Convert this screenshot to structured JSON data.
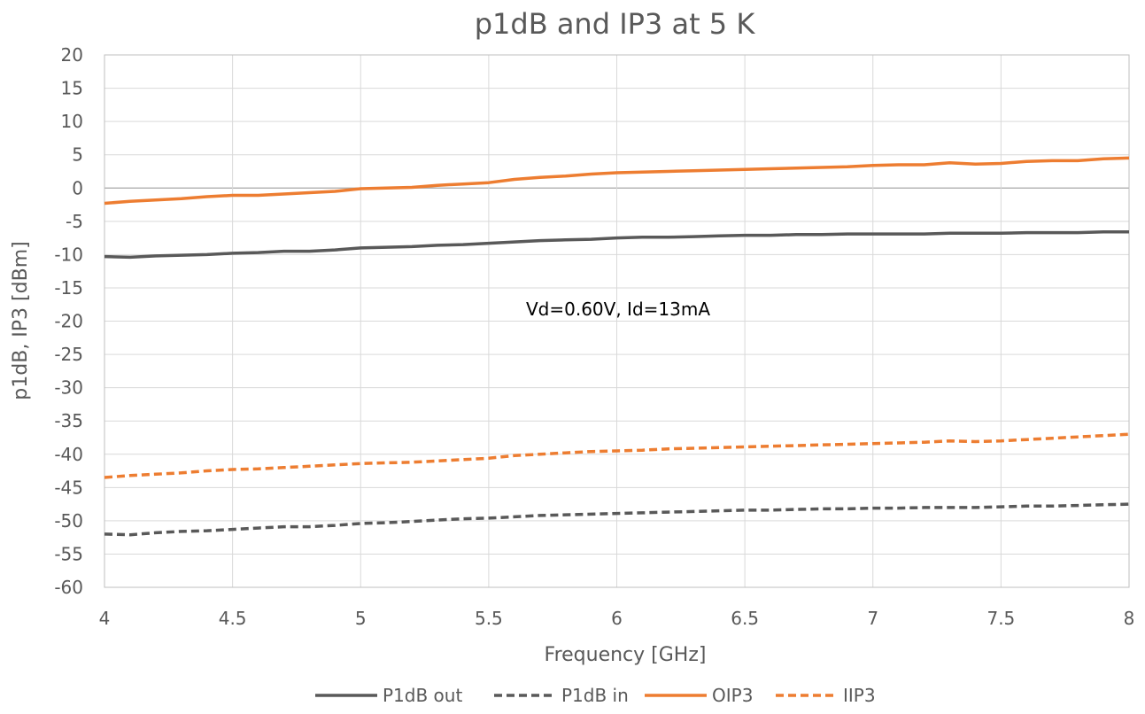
{
  "chart_data": {
    "type": "line",
    "title": "p1dB and IP3 at 5 K",
    "xlabel": "Frequency [GHz]",
    "ylabel": "p1dB, IP3 [dBm]",
    "xlim": [
      4,
      8
    ],
    "ylim": [
      -60,
      20
    ],
    "xticks": [
      "4",
      "4.5",
      "5",
      "5.5",
      "6",
      "6.5",
      "7",
      "7.5",
      "8"
    ],
    "yticks": [
      "20",
      "15",
      "10",
      "5",
      "0",
      "-5",
      "-10",
      "-15",
      "-20",
      "-25",
      "-30",
      "-35",
      "-40",
      "-45",
      "-50",
      "-55",
      "-60"
    ],
    "grid": true,
    "legend_position": "bottom",
    "annotation": "Vd=0.60V, Id=13mA",
    "x": [
      4.0,
      4.1,
      4.2,
      4.3,
      4.4,
      4.5,
      4.6,
      4.7,
      4.8,
      4.9,
      5.0,
      5.1,
      5.2,
      5.3,
      5.4,
      5.5,
      5.6,
      5.7,
      5.8,
      5.9,
      6.0,
      6.1,
      6.2,
      6.3,
      6.4,
      6.5,
      6.6,
      6.7,
      6.8,
      6.9,
      7.0,
      7.1,
      7.2,
      7.3,
      7.4,
      7.5,
      7.6,
      7.7,
      7.8,
      7.9,
      8.0
    ],
    "series": [
      {
        "name": "P1dB out",
        "color": "#595959",
        "dash": "solid",
        "values": [
          -10.3,
          -10.4,
          -10.2,
          -10.1,
          -10.0,
          -9.8,
          -9.7,
          -9.5,
          -9.5,
          -9.3,
          -9.0,
          -8.9,
          -8.8,
          -8.6,
          -8.5,
          -8.3,
          -8.1,
          -7.9,
          -7.8,
          -7.7,
          -7.5,
          -7.4,
          -7.4,
          -7.3,
          -7.2,
          -7.1,
          -7.1,
          -7.0,
          -7.0,
          -6.9,
          -6.9,
          -6.9,
          -6.9,
          -6.8,
          -6.8,
          -6.8,
          -6.7,
          -6.7,
          -6.7,
          -6.6,
          -6.6
        ]
      },
      {
        "name": "P1dB in",
        "color": "#595959",
        "dash": "dashed",
        "values": [
          -52.0,
          -52.1,
          -51.8,
          -51.6,
          -51.5,
          -51.3,
          -51.1,
          -50.9,
          -50.9,
          -50.7,
          -50.4,
          -50.3,
          -50.1,
          -49.9,
          -49.7,
          -49.6,
          -49.4,
          -49.2,
          -49.1,
          -49.0,
          -48.9,
          -48.8,
          -48.7,
          -48.6,
          -48.5,
          -48.4,
          -48.4,
          -48.3,
          -48.2,
          -48.2,
          -48.1,
          -48.1,
          -48.0,
          -48.0,
          -48.0,
          -47.9,
          -47.8,
          -47.8,
          -47.7,
          -47.6,
          -47.5
        ]
      },
      {
        "name": "OIP3",
        "color": "#ed7d31",
        "dash": "solid",
        "values": [
          -2.3,
          -2.0,
          -1.8,
          -1.6,
          -1.3,
          -1.1,
          -1.1,
          -0.9,
          -0.7,
          -0.5,
          -0.1,
          0.0,
          0.1,
          0.4,
          0.6,
          0.8,
          1.3,
          1.6,
          1.8,
          2.1,
          2.3,
          2.4,
          2.5,
          2.6,
          2.7,
          2.8,
          2.9,
          3.0,
          3.1,
          3.2,
          3.4,
          3.5,
          3.5,
          3.8,
          3.6,
          3.7,
          4.0,
          4.1,
          4.1,
          4.4,
          4.5
        ]
      },
      {
        "name": "IIP3",
        "color": "#ed7d31",
        "dash": "dashed",
        "values": [
          -43.5,
          -43.2,
          -43.0,
          -42.8,
          -42.5,
          -42.3,
          -42.2,
          -42.0,
          -41.8,
          -41.6,
          -41.4,
          -41.3,
          -41.2,
          -41.0,
          -40.8,
          -40.6,
          -40.2,
          -40.0,
          -39.8,
          -39.6,
          -39.5,
          -39.4,
          -39.2,
          -39.1,
          -39.0,
          -38.9,
          -38.8,
          -38.7,
          -38.6,
          -38.5,
          -38.4,
          -38.3,
          -38.2,
          -38.0,
          -38.1,
          -38.0,
          -37.8,
          -37.6,
          -37.4,
          -37.2,
          -37.0
        ]
      }
    ]
  }
}
